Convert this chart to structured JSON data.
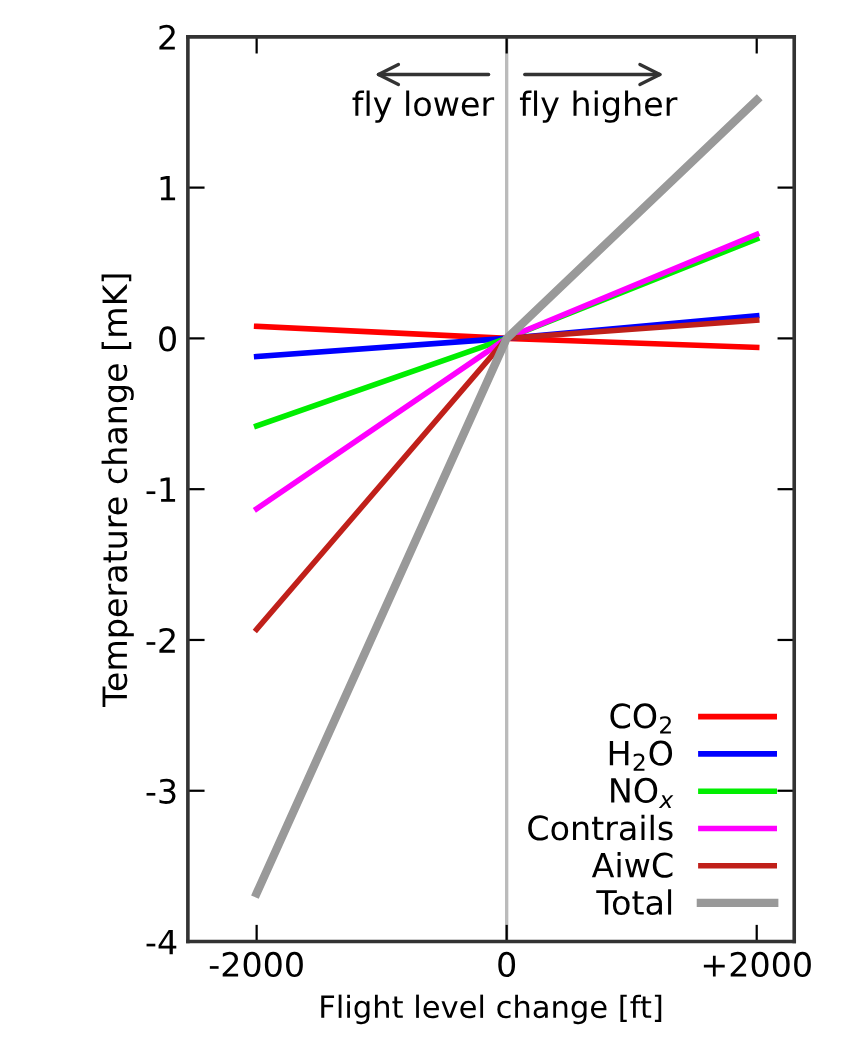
{
  "chart_data": {
    "type": "line",
    "xlabel": "Flight level change [ft]",
    "ylabel": "Temperature change [mK]",
    "x": [
      -2000,
      0,
      2000
    ],
    "series": [
      {
        "name": "CO$_{2}$",
        "color": "#ff0000",
        "values": [
          0.08,
          0,
          -0.06
        ]
      },
      {
        "name": "H$_{2}$O",
        "color": "#0000ff",
        "values": [
          -0.12,
          0,
          0.15
        ]
      },
      {
        "name": "NO$_{x}$",
        "color": "#00ee00",
        "values": [
          -0.58,
          0,
          0.66
        ]
      },
      {
        "name": "Contrails",
        "color": "#ff00ff",
        "values": [
          -1.13,
          0,
          0.69
        ]
      },
      {
        "name": "AiwC",
        "color": "#c0201a",
        "values": [
          -1.93,
          0,
          0.12
        ]
      },
      {
        "name": "Total",
        "color": "#999999",
        "values": [
          -3.68,
          0,
          1.58
        ]
      }
    ],
    "xlim": [
      -2550,
      2300
    ],
    "ylim": [
      -4,
      2
    ],
    "xticks": [
      -2000,
      0,
      {
        "value": 2000,
        "label": "+2000"
      }
    ],
    "yticks": [
      -4,
      -3,
      -2,
      -1,
      0,
      1,
      2
    ],
    "ref_lines": [
      {
        "axis": "x",
        "value": 0,
        "color": "#bbbbbb"
      }
    ],
    "annotations": [
      "fly lower",
      "fly higher"
    ],
    "legend": "bottom right",
    "grid": false,
    "marker": "none",
    "line_style": "solid"
  }
}
